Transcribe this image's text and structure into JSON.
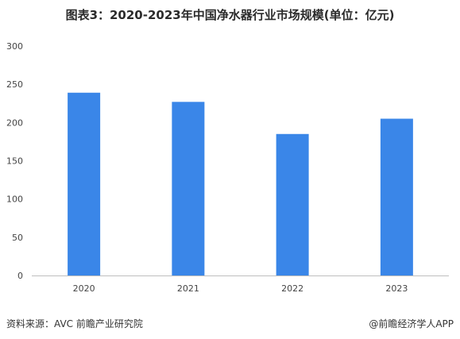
{
  "title": "图表3：2020-2023年中国净水器行业市场规模(单位：亿元)",
  "source": "资料来源：AVC 前瞻产业研究院",
  "credit": "@前瞻经济学人APP",
  "colors": {
    "bar": "#3a86e8",
    "axis": "#bfbfbf",
    "text": "#444444"
  },
  "chart_data": {
    "type": "bar",
    "title": "图表3：2020-2023年中国净水器行业市场规模(单位：亿元)",
    "categories": [
      "2020",
      "2021",
      "2022",
      "2023"
    ],
    "values": [
      239,
      227,
      185,
      205
    ],
    "ylim": [
      0,
      300
    ],
    "yticks": [
      0,
      50,
      100,
      150,
      200,
      250,
      300
    ],
    "grid": false,
    "legend": "none",
    "xlabel": "",
    "ylabel": ""
  }
}
